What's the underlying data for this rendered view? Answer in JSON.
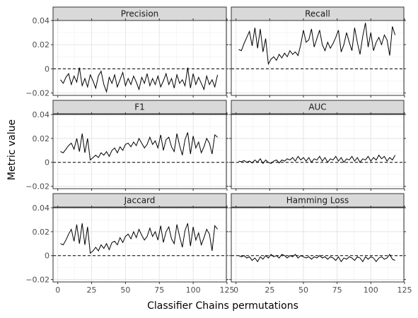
{
  "chart_data": {
    "type": "line",
    "xlabel": "Classifier Chains permutations",
    "ylabel": "Metric value",
    "xlim": [
      -3.5,
      124.5
    ],
    "ylim": [
      -0.022,
      0.04
    ],
    "x_ticks": [
      0,
      25,
      50,
      75,
      100,
      125
    ],
    "x_tick_labels": [
      "0",
      "25",
      "50",
      "75",
      "100",
      "125"
    ],
    "y_ticks": [
      -0.02,
      0,
      0.02,
      0.04
    ],
    "y_tick_labels": [
      "−0.02",
      "0",
      "0.02",
      "0.04"
    ],
    "reference_line": 0,
    "grid": true,
    "layout": "3x2 facets",
    "panels": [
      {
        "name": "Precision",
        "x": [
          2,
          4,
          6,
          8,
          10,
          12,
          14,
          16,
          18,
          20,
          22,
          24,
          26,
          28,
          30,
          32,
          34,
          36,
          38,
          40,
          42,
          44,
          46,
          48,
          50,
          52,
          54,
          56,
          58,
          60,
          62,
          64,
          66,
          68,
          70,
          72,
          74,
          76,
          78,
          80,
          82,
          84,
          86,
          88,
          90,
          92,
          94,
          96,
          98,
          100,
          102,
          104,
          106,
          108,
          110,
          112,
          114,
          116,
          118
        ],
        "y": [
          -0.009,
          -0.012,
          -0.007,
          -0.004,
          -0.013,
          -0.006,
          -0.011,
          0.001,
          -0.014,
          -0.008,
          -0.015,
          -0.005,
          -0.01,
          -0.016,
          -0.006,
          -0.002,
          -0.013,
          -0.019,
          -0.007,
          -0.012,
          -0.005,
          -0.015,
          -0.009,
          -0.003,
          -0.014,
          -0.008,
          -0.013,
          -0.006,
          -0.011,
          -0.017,
          -0.007,
          -0.012,
          -0.004,
          -0.014,
          -0.008,
          -0.013,
          -0.006,
          -0.015,
          -0.01,
          -0.004,
          -0.013,
          -0.008,
          -0.016,
          -0.005,
          -0.012,
          -0.009,
          -0.014,
          0.001,
          -0.016,
          -0.004,
          -0.013,
          -0.007,
          -0.012,
          -0.017,
          -0.006,
          -0.013,
          -0.009,
          -0.015,
          -0.005
        ]
      },
      {
        "name": "Recall",
        "x": [
          2,
          4,
          6,
          8,
          10,
          12,
          14,
          16,
          18,
          20,
          22,
          24,
          26,
          28,
          30,
          32,
          34,
          36,
          38,
          40,
          42,
          44,
          46,
          48,
          50,
          52,
          54,
          56,
          58,
          60,
          62,
          64,
          66,
          68,
          70,
          72,
          74,
          76,
          78,
          80,
          82,
          84,
          86,
          88,
          90,
          92,
          94,
          96,
          98,
          100,
          102,
          104,
          106,
          108,
          110,
          112,
          114,
          116,
          118
        ],
        "y": [
          0.016,
          0.015,
          0.021,
          0.026,
          0.031,
          0.019,
          0.034,
          0.017,
          0.033,
          0.014,
          0.025,
          0.004,
          0.008,
          0.01,
          0.007,
          0.012,
          0.009,
          0.013,
          0.01,
          0.015,
          0.012,
          0.014,
          0.011,
          0.02,
          0.032,
          0.022,
          0.024,
          0.033,
          0.018,
          0.025,
          0.032,
          0.02,
          0.015,
          0.022,
          0.017,
          0.021,
          0.026,
          0.032,
          0.014,
          0.02,
          0.03,
          0.022,
          0.015,
          0.034,
          0.022,
          0.012,
          0.027,
          0.038,
          0.018,
          0.03,
          0.015,
          0.022,
          0.026,
          0.02,
          0.028,
          0.024,
          0.011,
          0.035,
          0.028
        ]
      },
      {
        "name": "F1",
        "x": [
          2,
          4,
          6,
          8,
          10,
          12,
          14,
          16,
          18,
          20,
          22,
          24,
          26,
          28,
          30,
          32,
          34,
          36,
          38,
          40,
          42,
          44,
          46,
          48,
          50,
          52,
          54,
          56,
          58,
          60,
          62,
          64,
          66,
          68,
          70,
          72,
          74,
          76,
          78,
          80,
          82,
          84,
          86,
          88,
          90,
          92,
          94,
          96,
          98,
          100,
          102,
          104,
          106,
          108,
          110,
          112,
          114,
          116,
          118
        ],
        "y": [
          0.009,
          0.008,
          0.011,
          0.014,
          0.016,
          0.011,
          0.02,
          0.009,
          0.024,
          0.008,
          0.02,
          0.002,
          0.004,
          0.006,
          0.004,
          0.008,
          0.006,
          0.009,
          0.005,
          0.01,
          0.012,
          0.008,
          0.013,
          0.01,
          0.015,
          0.016,
          0.013,
          0.017,
          0.014,
          0.02,
          0.016,
          0.012,
          0.015,
          0.021,
          0.015,
          0.018,
          0.012,
          0.023,
          0.01,
          0.019,
          0.021,
          0.013,
          0.009,
          0.024,
          0.014,
          0.006,
          0.019,
          0.025,
          0.007,
          0.022,
          0.012,
          0.017,
          0.008,
          0.013,
          0.02,
          0.016,
          0.007,
          0.023,
          0.021
        ]
      },
      {
        "name": "AUC",
        "x": [
          2,
          4,
          6,
          8,
          10,
          12,
          14,
          16,
          18,
          20,
          22,
          24,
          26,
          28,
          30,
          32,
          34,
          36,
          38,
          40,
          42,
          44,
          46,
          48,
          50,
          52,
          54,
          56,
          58,
          60,
          62,
          64,
          66,
          68,
          70,
          72,
          74,
          76,
          78,
          80,
          82,
          84,
          86,
          88,
          90,
          92,
          94,
          96,
          98,
          100,
          102,
          104,
          106,
          108,
          110,
          112,
          114,
          116,
          118
        ],
        "y": [
          0.001,
          0.0005,
          0.0015,
          0.0,
          0.001,
          -0.0005,
          0.002,
          0.0,
          0.003,
          -0.001,
          0.002,
          0.0,
          -0.001,
          0.001,
          0.002,
          -0.0005,
          0.002,
          0.001,
          0.003,
          0.002,
          0.004,
          0.001,
          0.005,
          0.002,
          0.004,
          0.001,
          0.004,
          0.0,
          0.003,
          0.002,
          0.005,
          0.001,
          0.004,
          0.0,
          0.003,
          0.002,
          0.005,
          0.001,
          0.004,
          0.0,
          0.003,
          0.002,
          0.005,
          0.001,
          0.004,
          0.0,
          0.003,
          0.002,
          0.005,
          0.001,
          0.004,
          0.002,
          0.006,
          0.003,
          0.005,
          0.001,
          0.004,
          0.002,
          0.006
        ]
      },
      {
        "name": "Jaccard",
        "x": [
          2,
          4,
          6,
          8,
          10,
          12,
          14,
          16,
          18,
          20,
          22,
          24,
          26,
          28,
          30,
          32,
          34,
          36,
          38,
          40,
          42,
          44,
          46,
          48,
          50,
          52,
          54,
          56,
          58,
          60,
          62,
          64,
          66,
          68,
          70,
          72,
          74,
          76,
          78,
          80,
          82,
          84,
          86,
          88,
          90,
          92,
          94,
          96,
          98,
          100,
          102,
          104,
          106,
          108,
          110,
          112,
          114,
          116,
          118
        ],
        "y": [
          0.01,
          0.009,
          0.013,
          0.018,
          0.022,
          0.012,
          0.026,
          0.01,
          0.027,
          0.009,
          0.024,
          0.002,
          0.004,
          0.007,
          0.004,
          0.009,
          0.006,
          0.01,
          0.005,
          0.011,
          0.012,
          0.009,
          0.015,
          0.011,
          0.016,
          0.018,
          0.014,
          0.02,
          0.015,
          0.022,
          0.017,
          0.013,
          0.016,
          0.023,
          0.016,
          0.02,
          0.013,
          0.025,
          0.011,
          0.02,
          0.024,
          0.014,
          0.01,
          0.026,
          0.016,
          0.007,
          0.021,
          0.027,
          0.008,
          0.024,
          0.013,
          0.019,
          0.009,
          0.015,
          0.022,
          0.018,
          0.004,
          0.025,
          0.022
        ]
      },
      {
        "name": "Hamming Loss",
        "x": [
          2,
          4,
          6,
          8,
          10,
          12,
          14,
          16,
          18,
          20,
          22,
          24,
          26,
          28,
          30,
          32,
          34,
          36,
          38,
          40,
          42,
          44,
          46,
          48,
          50,
          52,
          54,
          56,
          58,
          60,
          62,
          64,
          66,
          68,
          70,
          72,
          74,
          76,
          78,
          80,
          82,
          84,
          86,
          88,
          90,
          92,
          94,
          96,
          98,
          100,
          102,
          104,
          106,
          108,
          110,
          112,
          114,
          116,
          118
        ],
        "y": [
          0.0,
          -0.001,
          0.0,
          -0.002,
          -0.001,
          -0.004,
          -0.002,
          -0.005,
          -0.001,
          -0.003,
          0.0,
          -0.002,
          0.001,
          -0.001,
          0.0,
          -0.002,
          0.001,
          0.0,
          -0.002,
          0.0,
          -0.001,
          0.001,
          -0.002,
          0.0,
          -0.001,
          -0.002,
          -0.001,
          -0.003,
          -0.001,
          -0.002,
          0.0,
          -0.002,
          -0.001,
          -0.003,
          -0.001,
          -0.002,
          -0.004,
          -0.001,
          -0.005,
          -0.002,
          -0.003,
          -0.001,
          -0.002,
          -0.004,
          -0.001,
          -0.002,
          -0.005,
          -0.001,
          -0.003,
          -0.001,
          -0.002,
          -0.005,
          -0.002,
          -0.001,
          -0.003,
          -0.002,
          0.001,
          -0.003,
          -0.004
        ]
      }
    ]
  }
}
